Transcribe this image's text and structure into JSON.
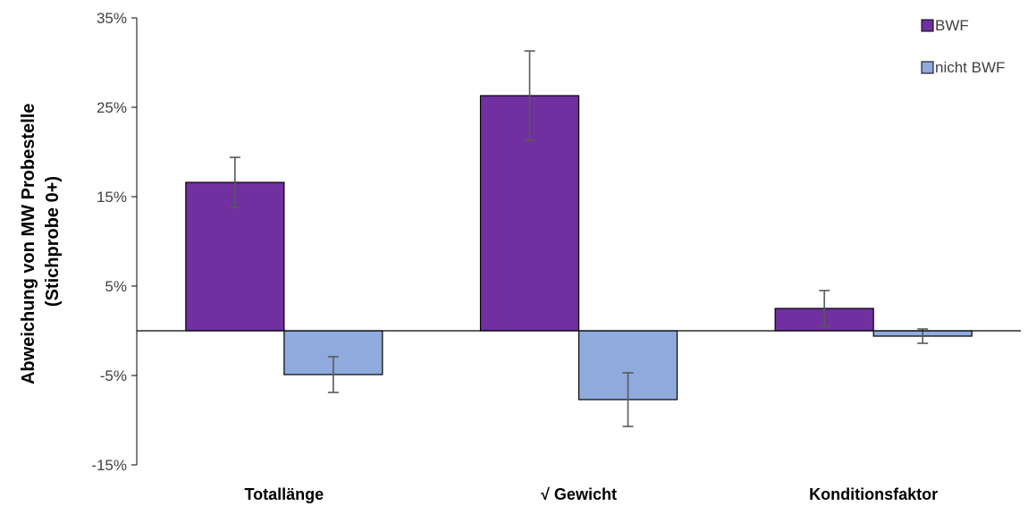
{
  "chart_data": {
    "type": "bar",
    "title": "",
    "xlabel": "",
    "ylabel_line1": "Abweichung von MW Probestelle",
    "ylabel_line2": "(Stichprobe 0+)",
    "categories": [
      "Totallänge",
      "√ Gewicht",
      "Konditionsfaktor"
    ],
    "series": [
      {
        "name": "BWF",
        "color": "#7030A0",
        "values": [
          16.6,
          26.3,
          2.5
        ],
        "error": [
          2.8,
          5.0,
          2.0
        ]
      },
      {
        "name": "nicht BWF",
        "color": "#8FAADC",
        "values": [
          -4.9,
          -7.7,
          -0.6
        ],
        "error": [
          2.0,
          3.0,
          0.8
        ]
      }
    ],
    "ylim": [
      -15,
      35
    ],
    "yticks": [
      35,
      25,
      15,
      5,
      -5,
      -15
    ],
    "ytick_labels": [
      "35%",
      "25%",
      "15%",
      "5%",
      "-5%",
      "-15%"
    ],
    "grid": false,
    "legend_position": "top-right"
  }
}
